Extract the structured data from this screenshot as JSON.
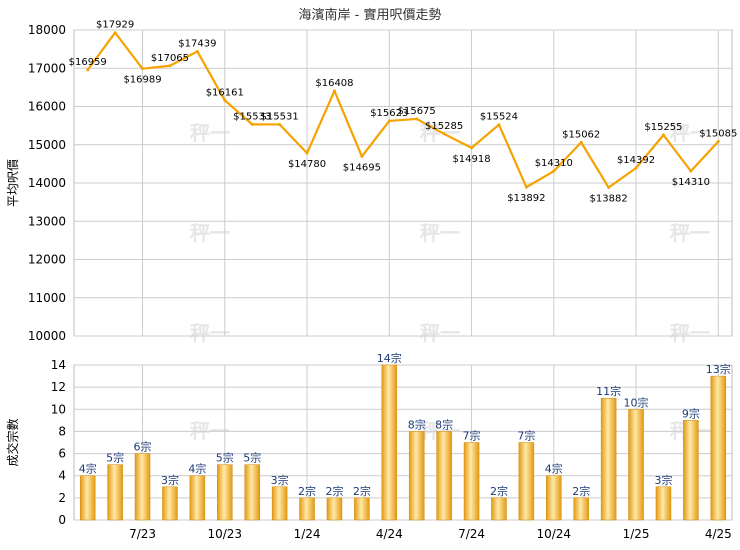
{
  "title": "海濱南岸 - 實用呎價走勢",
  "watermark": "秤一",
  "colors": {
    "line": "#f5a300",
    "bar_light": "#ffe9a8",
    "bar_dark": "#e39a12",
    "grid": "#cccccc",
    "bar_label": "#1c3a78"
  },
  "chart_data": [
    {
      "type": "line",
      "ylabel": "平均呎價",
      "ylim": [
        10000,
        18000
      ],
      "yticks": [
        "10000",
        "11000",
        "12000",
        "13000",
        "14000",
        "15000",
        "16000",
        "17000",
        "18000"
      ],
      "series": [
        {
          "values": [
            16959,
            17929,
            16989,
            17065,
            17439,
            16161,
            15533,
            15531,
            14780,
            16408,
            14695,
            15623,
            15675,
            15285,
            14918,
            15524,
            13892,
            14310,
            15062,
            13882,
            14392,
            15255,
            14310,
            15085
          ]
        }
      ],
      "point_labels": [
        "$16959",
        "$17929",
        "$16989",
        "$17065",
        "$17439",
        "$16161",
        "$15533",
        "$15531",
        "$14780",
        "$16408",
        "$14695",
        "$15623",
        "$15675",
        "$15285",
        "$14918",
        "$15524",
        "$13892",
        "$14310",
        "$15062",
        "$13882",
        "$14392",
        "$15255",
        "$14310",
        "$15085"
      ],
      "grid": true
    },
    {
      "type": "bar",
      "ylabel": "成交宗數",
      "ylim": [
        0,
        14
      ],
      "yticks": [
        "0",
        "2",
        "4",
        "6",
        "8",
        "10",
        "12",
        "14"
      ],
      "values": [
        4,
        5,
        6,
        3,
        4,
        5,
        5,
        3,
        2,
        2,
        2,
        14,
        8,
        8,
        7,
        2,
        7,
        4,
        2,
        11,
        10,
        3,
        9,
        13
      ],
      "bar_labels": [
        "4宗",
        "5宗",
        "6宗",
        "3宗",
        "4宗",
        "5宗",
        "5宗",
        "3宗",
        "2宗",
        "2宗",
        "2宗",
        "14宗",
        "8宗",
        "8宗",
        "7宗",
        "2宗",
        "7宗",
        "4宗",
        "2宗",
        "11宗",
        "10宗",
        "3宗",
        "9宗",
        "13宗"
      ],
      "xtick_labels": [
        "7/23",
        "10/23",
        "1/24",
        "4/24",
        "7/24",
        "10/24",
        "1/25",
        "4/25"
      ],
      "grid": true
    }
  ]
}
